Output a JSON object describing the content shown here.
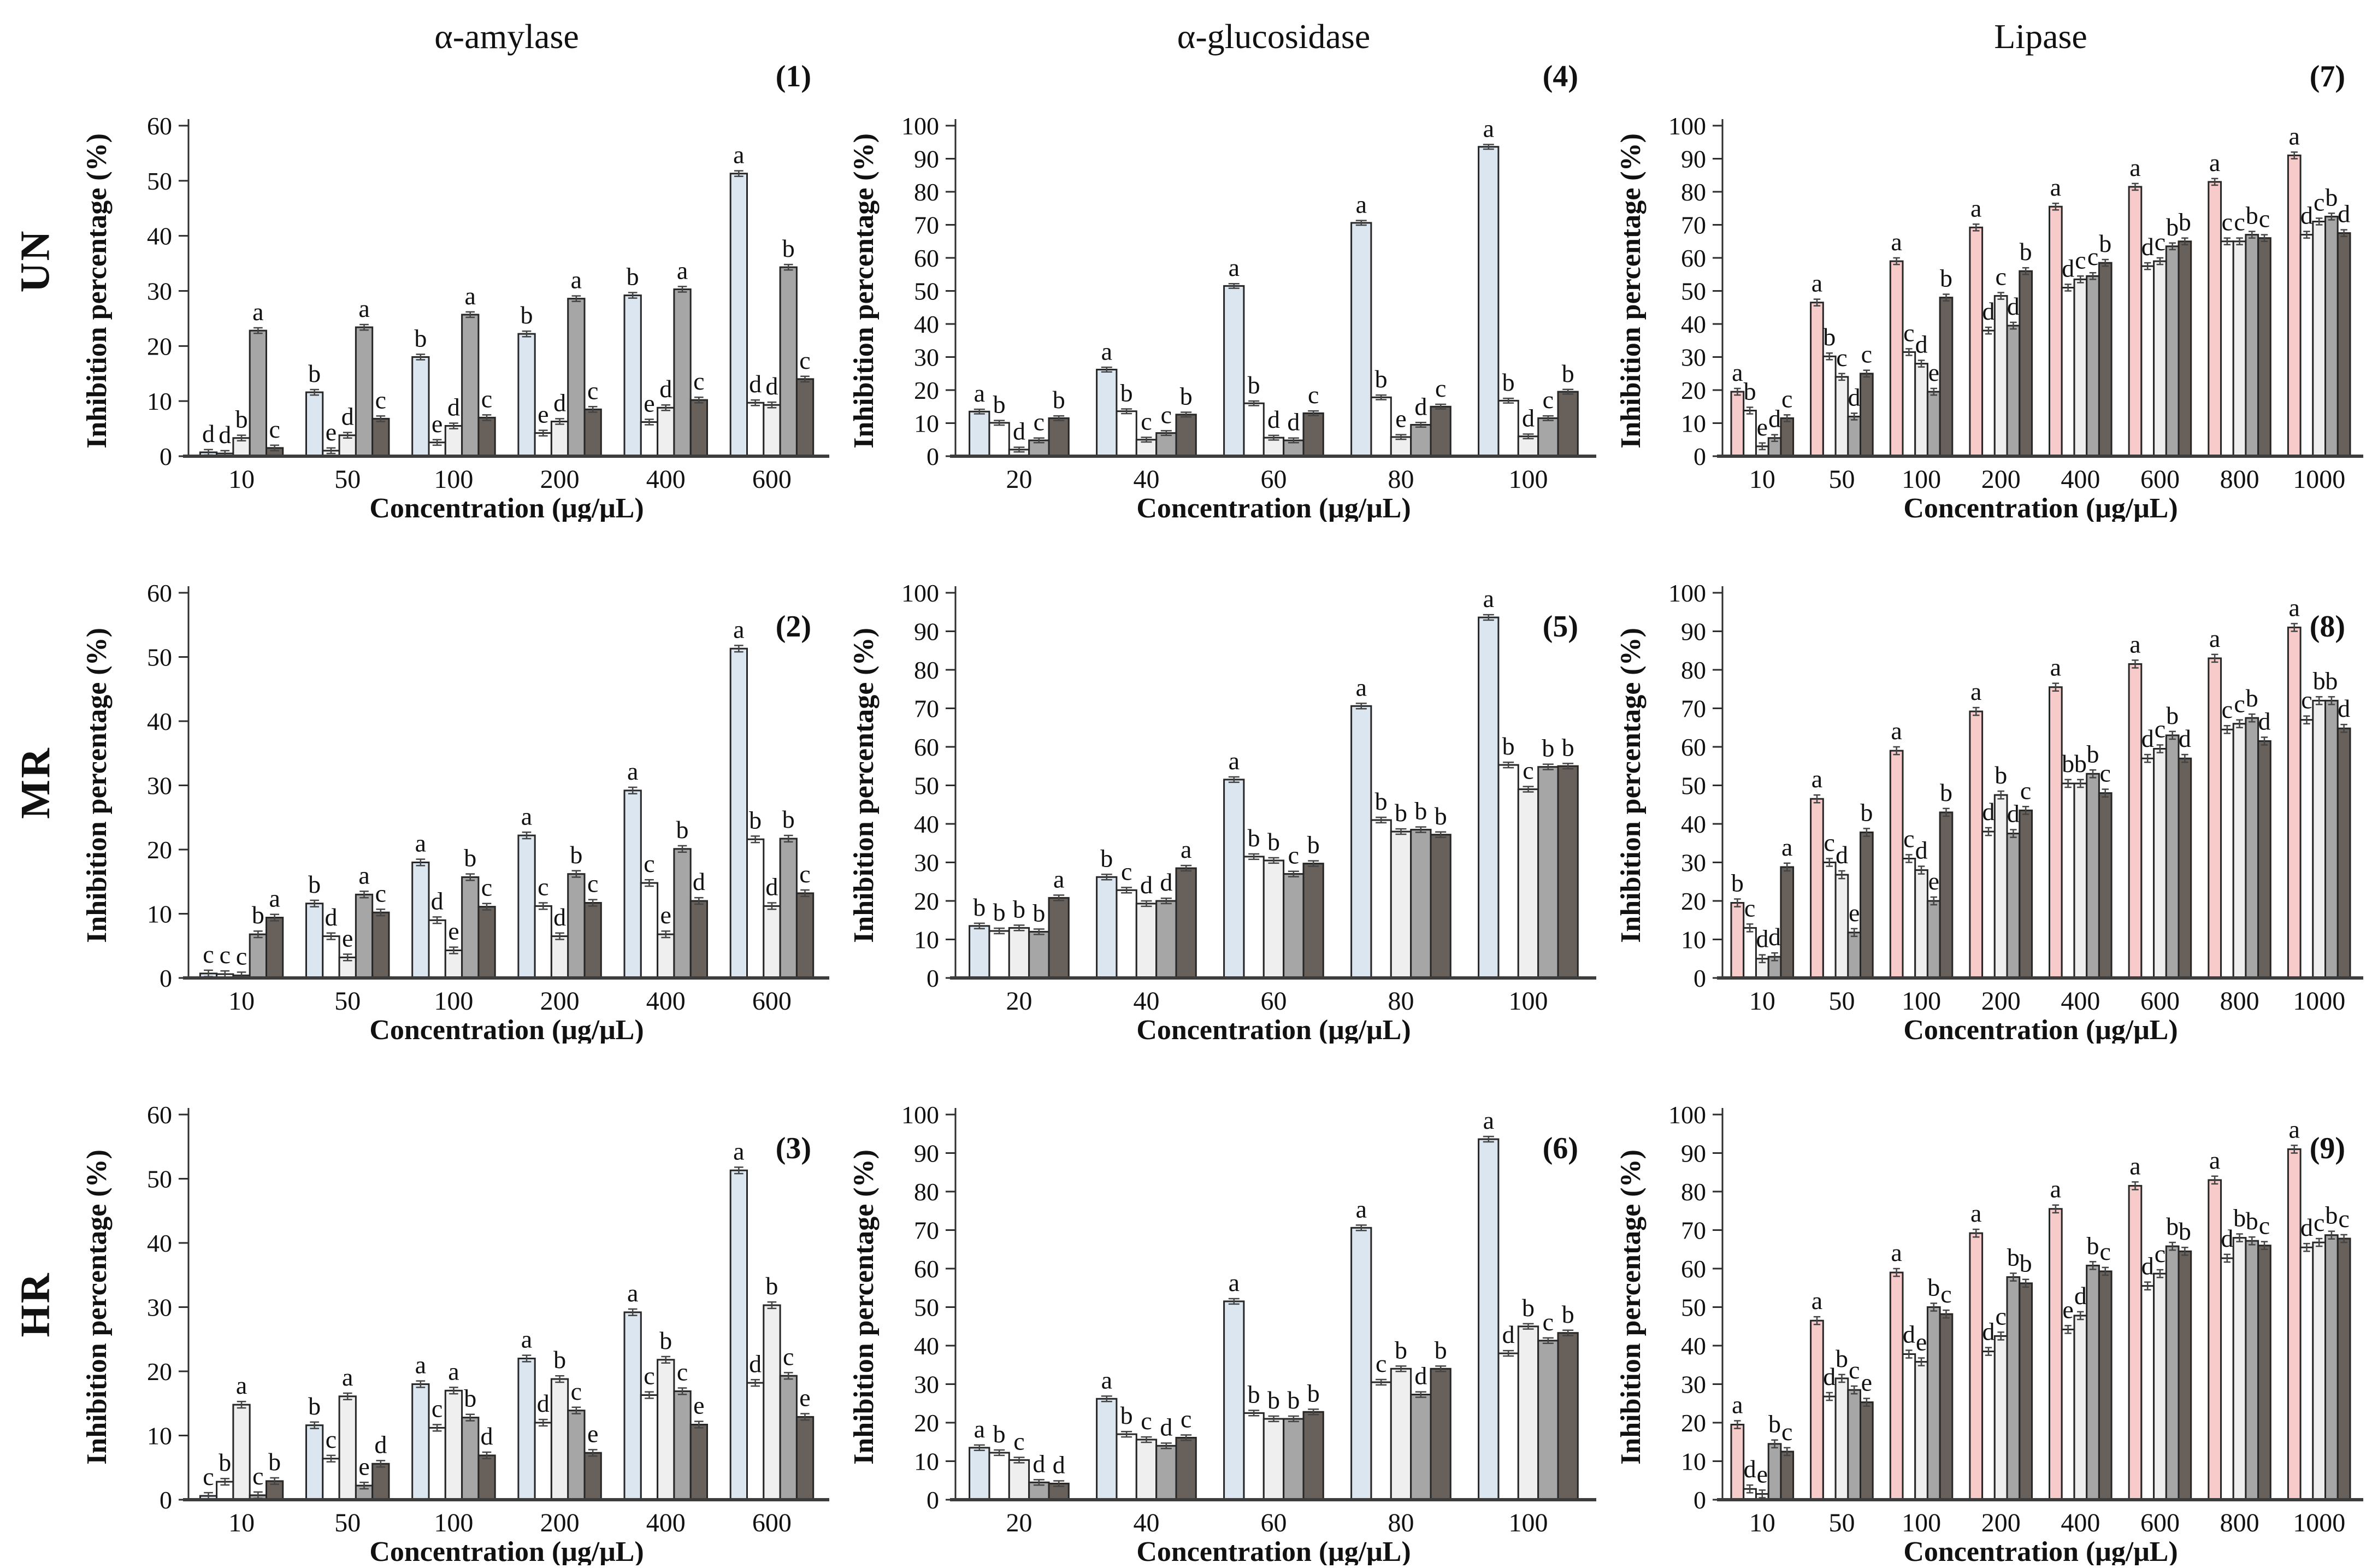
{
  "figure": {
    "columns": [
      "α-amylase",
      "α-glucosidase",
      "Lipase"
    ],
    "rows": [
      "UN",
      "MR",
      "HR"
    ],
    "axis": {
      "x_label": "Concentration (μg/μL)",
      "y_label": "Inhibition percentage (%)"
    },
    "colors": {
      "series_standard": [
        "#dce6f1",
        "#ffffff",
        "#efefef",
        "#a6a6a6",
        "#67605b"
      ],
      "series_lipase": [
        "#f8cbcb",
        "#ffffff",
        "#efefef",
        "#a6a6a6",
        "#67605b"
      ],
      "bar_border": "#262626",
      "axis_line": "#3d3d3d"
    }
  },
  "chart_data": [
    {
      "type": "bar",
      "panel": "(1)",
      "row": "UN",
      "column": "α-amylase",
      "xlabel": "Concentration (μg/μL)",
      "ylabel": "Inhibition percentage (%)",
      "ylim": [
        0,
        60
      ],
      "ytick_step": 10,
      "err": 0.5,
      "colors": [
        "#dce6f1",
        "#ffffff",
        "#efefef",
        "#a6a6a6",
        "#67605b"
      ],
      "x_labels": [
        "10",
        "50",
        "100",
        "200",
        "400",
        "600"
      ],
      "values": [
        [
          0.7,
          0.5,
          3.3,
          22.8,
          1.5
        ],
        [
          11.6,
          1.0,
          3.8,
          23.4,
          6.8
        ],
        [
          18.0,
          2.5,
          5.5,
          25.7,
          7.0
        ],
        [
          22.2,
          4.2,
          6.3,
          28.6,
          8.5
        ],
        [
          29.2,
          6.2,
          8.8,
          30.3,
          10.2
        ],
        [
          51.3,
          9.7,
          9.3,
          34.3,
          14.0
        ]
      ],
      "letters": [
        [
          "d",
          "d",
          "b",
          "a",
          "c"
        ],
        [
          "b",
          "e",
          "d",
          "a",
          "c"
        ],
        [
          "b",
          "e",
          "d",
          "a",
          "c"
        ],
        [
          "b",
          "e",
          "d",
          "a",
          "c"
        ],
        [
          "b",
          "e",
          "d",
          "a",
          "c"
        ],
        [
          "a",
          "d",
          "d",
          "b",
          "c"
        ]
      ]
    },
    {
      "type": "bar",
      "panel": "(4)",
      "row": "UN",
      "column": "α-glucosidase",
      "xlabel": "Concentration (μg/μL)",
      "ylabel": "Inhibition percentage (%)",
      "ylim": [
        0,
        100
      ],
      "ytick_step": 10,
      "err": 0.7,
      "colors": [
        "#dce6f1",
        "#ffffff",
        "#efefef",
        "#a6a6a6",
        "#67605b"
      ],
      "x_labels": [
        "20",
        "40",
        "60",
        "80",
        "100"
      ],
      "values": [
        [
          13.5,
          10.1,
          2.0,
          4.8,
          11.5
        ],
        [
          26.2,
          13.6,
          5.0,
          7.0,
          12.6
        ],
        [
          51.5,
          16.0,
          5.6,
          4.8,
          13.0
        ],
        [
          70.6,
          17.8,
          5.8,
          9.5,
          15.0
        ],
        [
          93.6,
          16.8,
          6.0,
          11.5,
          19.5
        ]
      ],
      "letters": [
        [
          "a",
          "b",
          "d",
          "c",
          "b"
        ],
        [
          "a",
          "b",
          "c",
          "c",
          "b"
        ],
        [
          "a",
          "b",
          "d",
          "d",
          "c"
        ],
        [
          "a",
          "b",
          "e",
          "d",
          "c"
        ],
        [
          "a",
          "b",
          "d",
          "c",
          "b"
        ]
      ]
    },
    {
      "type": "bar",
      "panel": "(7)",
      "row": "UN",
      "column": "Lipase",
      "xlabel": "Concentration (μg/μL)",
      "ylabel": "Inhibition percentage (%)",
      "ylim": [
        0,
        100
      ],
      "ytick_step": 10,
      "err": 1.0,
      "colors": [
        "#f8cbcb",
        "#ffffff",
        "#efefef",
        "#a6a6a6",
        "#67605b"
      ],
      "x_labels": [
        "10",
        "50",
        "100",
        "200",
        "400",
        "600",
        "800",
        "1000"
      ],
      "values": [
        [
          19.5,
          13.8,
          3.0,
          5.5,
          11.5
        ],
        [
          46.5,
          30.2,
          24.0,
          12.0,
          25.0
        ],
        [
          59.0,
          31.5,
          28.0,
          19.5,
          48.0
        ],
        [
          69.2,
          38.0,
          48.5,
          39.5,
          56.0
        ],
        [
          75.5,
          51.0,
          53.5,
          54.5,
          58.5
        ],
        [
          81.5,
          57.5,
          59.0,
          63.5,
          65.0
        ],
        [
          83.0,
          65.0,
          65.0,
          67.0,
          66.0
        ],
        [
          91.0,
          67.0,
          71.0,
          72.5,
          67.5
        ]
      ],
      "letters": [
        [
          "a",
          "b",
          "e",
          "d",
          "c"
        ],
        [
          "a",
          "b",
          "c",
          "d",
          "c"
        ],
        [
          "a",
          "c",
          "d",
          "e",
          "b"
        ],
        [
          "a",
          "d",
          "c",
          "d",
          "b"
        ],
        [
          "a",
          "d",
          "c",
          "c",
          "b"
        ],
        [
          "a",
          "d",
          "c",
          "b",
          "b"
        ],
        [
          "a",
          "c",
          "c",
          "b",
          "c"
        ],
        [
          "a",
          "d",
          "c",
          "b",
          "d"
        ]
      ]
    },
    {
      "type": "bar",
      "panel": "(2)",
      "row": "MR",
      "column": "α-amylase",
      "xlabel": "Concentration (μg/μL)",
      "ylabel": "Inhibition percentage (%)",
      "ylim": [
        0,
        60
      ],
      "ytick_step": 10,
      "err": 0.5,
      "colors": [
        "#dce6f1",
        "#ffffff",
        "#efefef",
        "#a6a6a6",
        "#67605b"
      ],
      "x_labels": [
        "10",
        "50",
        "100",
        "200",
        "400",
        "600"
      ],
      "values": [
        [
          0.7,
          0.6,
          0.4,
          6.8,
          9.4
        ],
        [
          11.6,
          6.5,
          3.2,
          13.0,
          10.2
        ],
        [
          18.0,
          9.0,
          4.3,
          15.7,
          11.1
        ],
        [
          22.2,
          11.2,
          6.5,
          16.2,
          11.7
        ],
        [
          29.2,
          14.8,
          6.8,
          20.1,
          12.0
        ],
        [
          51.3,
          21.6,
          11.2,
          21.7,
          13.2
        ]
      ],
      "letters": [
        [
          "c",
          "c",
          "c",
          "b",
          "a"
        ],
        [
          "b",
          "d",
          "e",
          "a",
          "c"
        ],
        [
          "a",
          "d",
          "e",
          "b",
          "c"
        ],
        [
          "a",
          "c",
          "d",
          "b",
          "c"
        ],
        [
          "a",
          "c",
          "e",
          "b",
          "d"
        ],
        [
          "a",
          "b",
          "d",
          "b",
          "c"
        ]
      ]
    },
    {
      "type": "bar",
      "panel": "(5)",
      "row": "MR",
      "column": "α-glucosidase",
      "xlabel": "Concentration (μg/μL)",
      "ylabel": "Inhibition percentage (%)",
      "ylim": [
        0,
        100
      ],
      "ytick_step": 10,
      "err": 0.7,
      "colors": [
        "#dce6f1",
        "#ffffff",
        "#efefef",
        "#a6a6a6",
        "#67605b"
      ],
      "x_labels": [
        "20",
        "40",
        "60",
        "80",
        "100"
      ],
      "values": [
        [
          13.5,
          12.2,
          13.0,
          12.0,
          20.8
        ],
        [
          26.2,
          22.8,
          19.3,
          20.0,
          28.5
        ],
        [
          51.5,
          31.5,
          30.5,
          27.0,
          29.7
        ],
        [
          70.6,
          41.0,
          38.0,
          38.5,
          37.2
        ],
        [
          93.6,
          55.3,
          49.0,
          54.8,
          55.0
        ]
      ],
      "letters": [
        [
          "b",
          "b",
          "b",
          "b",
          "a"
        ],
        [
          "b",
          "c",
          "d",
          "d",
          "a"
        ],
        [
          "a",
          "b",
          "b",
          "c",
          "b"
        ],
        [
          "a",
          "b",
          "b",
          "b",
          "b"
        ],
        [
          "a",
          "b",
          "c",
          "b",
          "b"
        ]
      ]
    },
    {
      "type": "bar",
      "panel": "(8)",
      "row": "MR",
      "column": "Lipase",
      "xlabel": "Concentration (μg/μL)",
      "ylabel": "Inhibition percentage (%)",
      "ylim": [
        0,
        100
      ],
      "ytick_step": 10,
      "err": 1.0,
      "colors": [
        "#f8cbcb",
        "#ffffff",
        "#efefef",
        "#a6a6a6",
        "#67605b"
      ],
      "x_labels": [
        "10",
        "50",
        "100",
        "200",
        "400",
        "600",
        "800",
        "1000"
      ],
      "values": [
        [
          19.5,
          13.0,
          5.0,
          5.5,
          28.8
        ],
        [
          46.5,
          30.0,
          26.8,
          11.8,
          37.8
        ],
        [
          59.0,
          31.0,
          28.0,
          20.0,
          43.0
        ],
        [
          69.2,
          38.0,
          47.5,
          37.5,
          43.5
        ],
        [
          75.5,
          50.5,
          50.5,
          53.0,
          48.0
        ],
        [
          81.5,
          57.0,
          59.5,
          63.0,
          57.0
        ],
        [
          83.0,
          64.5,
          66.0,
          67.5,
          61.5
        ],
        [
          91.0,
          67.0,
          72.0,
          72.0,
          64.8
        ]
      ],
      "letters": [
        [
          "b",
          "c",
          "d",
          "d",
          "a"
        ],
        [
          "a",
          "c",
          "d",
          "e",
          "b"
        ],
        [
          "a",
          "c",
          "d",
          "e",
          "b"
        ],
        [
          "a",
          "d",
          "b",
          "d",
          "c"
        ],
        [
          "a",
          "b",
          "b",
          "b",
          "c"
        ],
        [
          "a",
          "d",
          "c",
          "b",
          "d"
        ],
        [
          "a",
          "c",
          "c",
          "b",
          "d"
        ],
        [
          "a",
          "c",
          "b",
          "b",
          "d"
        ]
      ]
    },
    {
      "type": "bar",
      "panel": "(3)",
      "row": "HR",
      "column": "α-amylase",
      "xlabel": "Concentration (μg/μL)",
      "ylabel": "Inhibition percentage (%)",
      "ylim": [
        0,
        60
      ],
      "ytick_step": 10,
      "err": 0.5,
      "colors": [
        "#dce6f1",
        "#ffffff",
        "#efefef",
        "#a6a6a6",
        "#67605b"
      ],
      "x_labels": [
        "10",
        "50",
        "100",
        "200",
        "400",
        "600"
      ],
      "values": [
        [
          0.6,
          2.8,
          14.8,
          0.7,
          2.9
        ],
        [
          11.6,
          6.4,
          16.1,
          2.2,
          5.6
        ],
        [
          18.0,
          11.2,
          17.0,
          12.8,
          6.9
        ],
        [
          22.0,
          12.0,
          18.8,
          13.9,
          7.3
        ],
        [
          29.2,
          16.3,
          21.8,
          16.9,
          11.7
        ],
        [
          51.3,
          18.2,
          30.3,
          19.3,
          12.9
        ]
      ],
      "letters": [
        [
          "c",
          "b",
          "a",
          "c",
          "b"
        ],
        [
          "b",
          "c",
          "a",
          "e",
          "d"
        ],
        [
          "a",
          "c",
          "a",
          "b",
          "d"
        ],
        [
          "a",
          "d",
          "b",
          "c",
          "e"
        ],
        [
          "a",
          "c",
          "b",
          "c",
          "e"
        ],
        [
          "a",
          "d",
          "b",
          "c",
          "e"
        ]
      ]
    },
    {
      "type": "bar",
      "panel": "(6)",
      "row": "HR",
      "column": "α-glucosidase",
      "xlabel": "Concentration (μg/μL)",
      "ylabel": "Inhibition percentage (%)",
      "ylim": [
        0,
        100
      ],
      "ytick_step": 10,
      "err": 0.7,
      "colors": [
        "#dce6f1",
        "#ffffff",
        "#efefef",
        "#a6a6a6",
        "#67605b"
      ],
      "x_labels": [
        "20",
        "40",
        "60",
        "80",
        "100"
      ],
      "values": [
        [
          13.5,
          12.2,
          10.3,
          4.5,
          4.2
        ],
        [
          26.2,
          17.0,
          15.6,
          14.0,
          16.1
        ],
        [
          51.5,
          22.5,
          21.0,
          21.0,
          22.8
        ],
        [
          70.6,
          30.5,
          34.0,
          27.3,
          34.0
        ],
        [
          93.6,
          38.0,
          45.0,
          41.3,
          43.3
        ]
      ],
      "letters": [
        [
          "a",
          "b",
          "c",
          "d",
          "d"
        ],
        [
          "a",
          "b",
          "c",
          "d",
          "c"
        ],
        [
          "a",
          "b",
          "b",
          "b",
          "b"
        ],
        [
          "a",
          "c",
          "b",
          "d",
          "b"
        ],
        [
          "a",
          "d",
          "b",
          "c",
          "b"
        ]
      ]
    },
    {
      "type": "bar",
      "panel": "(9)",
      "row": "HR",
      "column": "Lipase",
      "xlabel": "Concentration (μg/μL)",
      "ylabel": "Inhibition percentage (%)",
      "ylim": [
        0,
        100
      ],
      "ytick_step": 10,
      "err": 1.0,
      "colors": [
        "#f8cbcb",
        "#ffffff",
        "#efefef",
        "#a6a6a6",
        "#67605b"
      ],
      "x_labels": [
        "10",
        "50",
        "100",
        "200",
        "400",
        "600",
        "800",
        "1000"
      ],
      "values": [
        [
          19.5,
          2.8,
          1.5,
          14.5,
          12.5
        ],
        [
          46.5,
          26.8,
          31.5,
          28.5,
          25.3
        ],
        [
          59.0,
          37.8,
          35.8,
          50.0,
          48.2
        ],
        [
          69.2,
          38.5,
          42.5,
          57.8,
          56.2
        ],
        [
          75.5,
          44.2,
          47.8,
          60.8,
          59.3
        ],
        [
          81.5,
          55.5,
          58.7,
          65.8,
          64.5
        ],
        [
          83.0,
          62.7,
          68.0,
          67.2,
          66.0
        ],
        [
          91.0,
          65.5,
          66.8,
          68.7,
          67.8
        ]
      ],
      "letters": [
        [
          "a",
          "d",
          "e",
          "b",
          "c"
        ],
        [
          "a",
          "d",
          "b",
          "c",
          "e"
        ],
        [
          "a",
          "d",
          "e",
          "b",
          "c"
        ],
        [
          "a",
          "d",
          "c",
          "b",
          "b"
        ],
        [
          "a",
          "e",
          "d",
          "b",
          "c"
        ],
        [
          "a",
          "d",
          "c",
          "b",
          "b"
        ],
        [
          "a",
          "d",
          "b",
          "b",
          "c"
        ],
        [
          "a",
          "d",
          "c",
          "b",
          "c"
        ]
      ]
    }
  ]
}
